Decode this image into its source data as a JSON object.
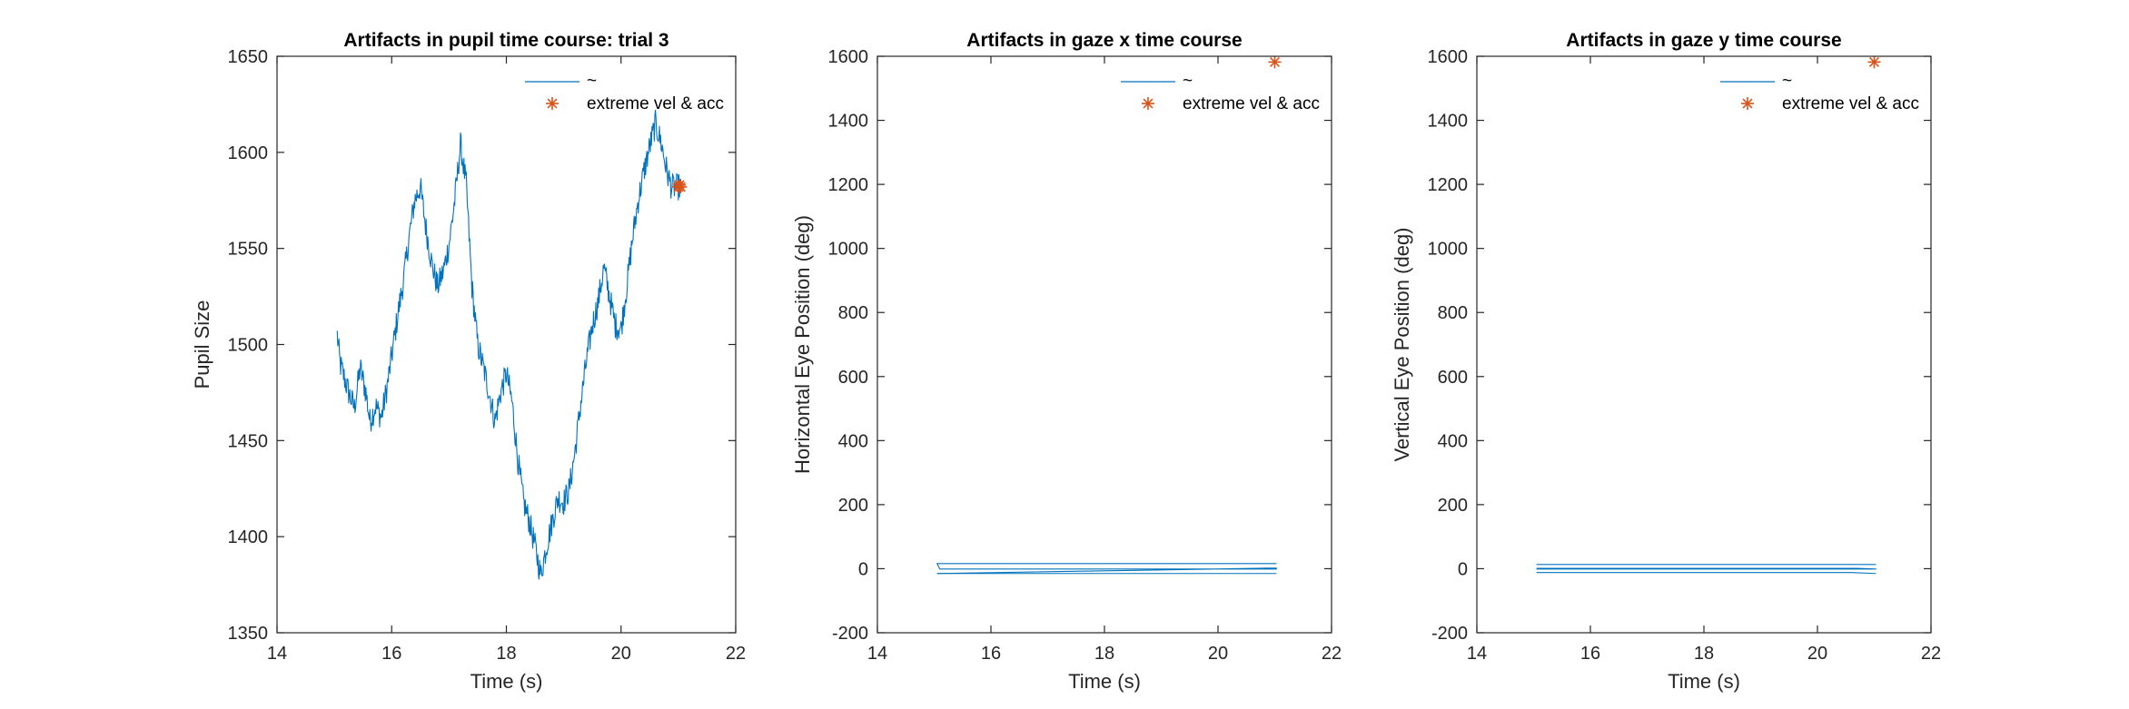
{
  "figure": {
    "background": "#ffffff",
    "axis_color": "#262626",
    "line_color": "#0072bd",
    "marker_color": "#d95319"
  },
  "chart_data": [
    {
      "type": "line",
      "title": "Artifacts in pupil time course: trial 3",
      "xlabel": "Time (s)",
      "ylabel": "Pupil Size",
      "xlim": [
        14,
        22
      ],
      "ylim": [
        1350,
        1650
      ],
      "xticks": [
        14,
        16,
        18,
        20,
        22
      ],
      "yticks": [
        1350,
        1400,
        1450,
        1500,
        1550,
        1600,
        1650
      ],
      "grid": false,
      "legend": {
        "placement": "top-right",
        "entries": [
          "~",
          "extreme vel & acc"
        ]
      },
      "series": [
        {
          "name": "~",
          "style": "line",
          "noise": 7,
          "x": [
            15.05,
            15.1,
            15.25,
            15.35,
            15.45,
            15.55,
            15.62,
            15.72,
            15.82,
            15.92,
            16.02,
            16.12,
            16.2,
            16.3,
            16.4,
            16.5,
            16.6,
            16.7,
            16.8,
            16.9,
            17.0,
            17.1,
            17.2,
            17.3,
            17.4,
            17.5,
            17.6,
            17.7,
            17.8,
            17.9,
            18.0,
            18.1,
            18.2,
            18.3,
            18.4,
            18.5,
            18.6,
            18.7,
            18.8,
            18.9,
            19.0,
            19.1,
            19.2,
            19.3,
            19.4,
            19.5,
            19.6,
            19.7,
            19.8,
            19.9,
            20.0,
            20.1,
            20.2,
            20.3,
            20.4,
            20.5,
            20.6,
            20.7,
            20.8,
            20.88,
            20.93,
            20.98,
            21.05
          ],
          "y": [
            1505,
            1490,
            1475,
            1467,
            1488,
            1475,
            1460,
            1468,
            1462,
            1478,
            1498,
            1518,
            1532,
            1555,
            1575,
            1582,
            1560,
            1542,
            1530,
            1538,
            1552,
            1575,
            1604,
            1583,
            1530,
            1500,
            1488,
            1475,
            1460,
            1475,
            1485,
            1470,
            1440,
            1418,
            1408,
            1395,
            1380,
            1395,
            1408,
            1420,
            1418,
            1425,
            1445,
            1470,
            1492,
            1510,
            1522,
            1540,
            1525,
            1510,
            1508,
            1530,
            1555,
            1575,
            1590,
            1603,
            1615,
            1605,
            1590,
            1582,
            1582,
            1582,
            1582
          ]
        },
        {
          "name": "extreme vel & acc",
          "style": "marker",
          "x": [
            21.0,
            21.02,
            21.04
          ],
          "y": [
            1582,
            1583,
            1582
          ]
        }
      ]
    },
    {
      "type": "line",
      "title": "Artifacts in gaze x time course",
      "xlabel": "Time (s)",
      "ylabel": "Horizontal Eye Position (deg)",
      "xlim": [
        14,
        22
      ],
      "ylim": [
        -200,
        1600
      ],
      "xticks": [
        14,
        16,
        18,
        20,
        22
      ],
      "yticks": [
        -200,
        0,
        200,
        400,
        600,
        800,
        1000,
        1200,
        1400,
        1600
      ],
      "grid": false,
      "legend": {
        "placement": "top-right",
        "entries": [
          "~",
          "extreme vel & acc"
        ]
      },
      "series": [
        {
          "name": "~",
          "style": "line",
          "x": [
            21.03,
            15.05,
            15.1,
            21.03,
            20.8,
            21.03,
            15.05
          ],
          "y": [
            16,
            16,
            -1,
            -1,
            2,
            2,
            -15
          ]
        },
        {
          "name": "~",
          "style": "line",
          "x": [
            15.05,
            21.03
          ],
          "y": [
            -15,
            -15
          ]
        },
        {
          "name": "extreme vel & acc",
          "style": "marker",
          "x": [
            21.0
          ],
          "y": [
            1582
          ]
        }
      ]
    },
    {
      "type": "line",
      "title": "Artifacts in gaze y time course",
      "xlabel": "Time (s)",
      "ylabel": "Vertical Eye Position (deg)",
      "xlim": [
        14,
        22
      ],
      "ylim": [
        -200,
        1600
      ],
      "xticks": [
        14,
        16,
        18,
        20,
        22
      ],
      "yticks": [
        -200,
        0,
        200,
        400,
        600,
        800,
        1000,
        1200,
        1400,
        1600
      ],
      "grid": false,
      "legend": {
        "placement": "top-right",
        "entries": [
          "~",
          "extreme vel & acc"
        ]
      },
      "series": [
        {
          "name": "~",
          "style": "line",
          "x": [
            15.05,
            21.03
          ],
          "y": [
            13,
            13
          ]
        },
        {
          "name": "~",
          "style": "line",
          "x": [
            15.05,
            21.03,
            20.7,
            15.05
          ],
          "y": [
            -1,
            -1,
            1,
            1
          ]
        },
        {
          "name": "~",
          "style": "line",
          "x": [
            15.05,
            20.6,
            21.03
          ],
          "y": [
            -12,
            -12,
            -15
          ]
        },
        {
          "name": "extreme vel & acc",
          "style": "marker",
          "x": [
            21.0
          ],
          "y": [
            1582
          ]
        }
      ]
    }
  ]
}
